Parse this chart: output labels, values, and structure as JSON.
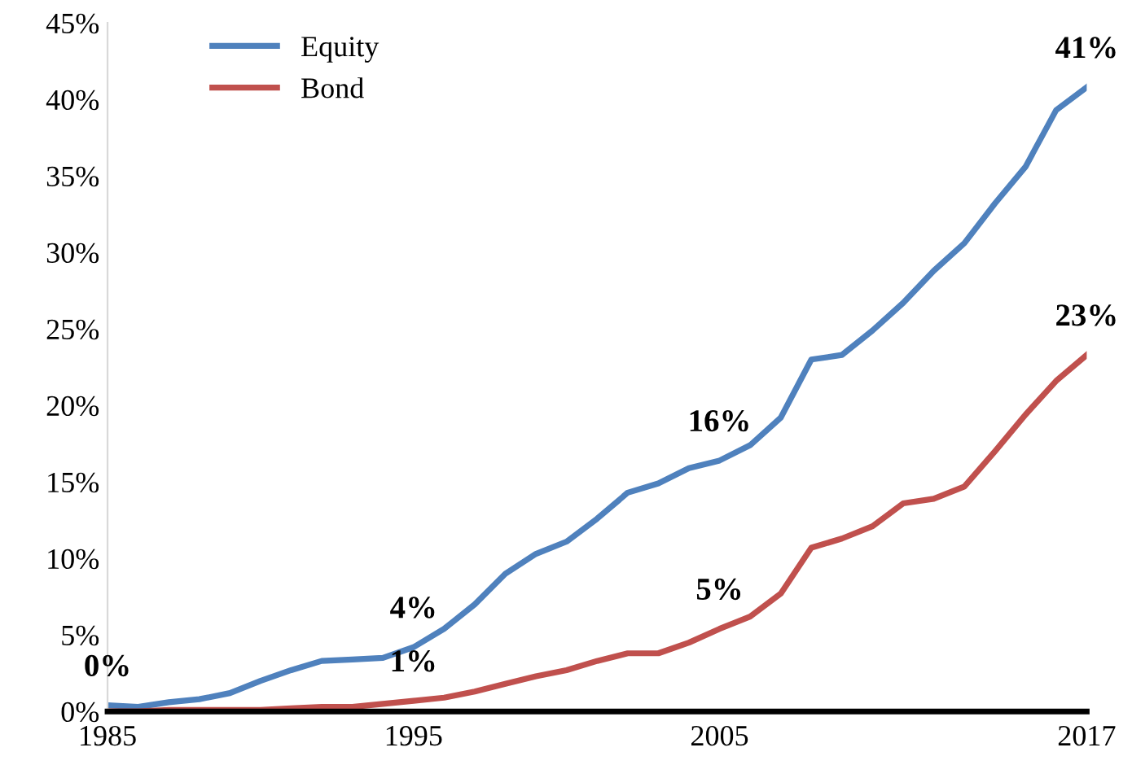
{
  "chart_data": {
    "type": "line",
    "x": [
      1985,
      1986,
      1987,
      1988,
      1989,
      1990,
      1991,
      1992,
      1993,
      1994,
      1995,
      1996,
      1997,
      1998,
      1999,
      2000,
      2001,
      2002,
      2003,
      2004,
      2005,
      2006,
      2007,
      2008,
      2009,
      2010,
      2011,
      2012,
      2013,
      2014,
      2015,
      2016,
      2017
    ],
    "series": [
      {
        "name": "Equity",
        "color": "#4f81bd",
        "values": [
          0.4,
          0.3,
          0.6,
          0.8,
          1.2,
          2.0,
          2.7,
          3.3,
          3.4,
          3.5,
          4.2,
          5.4,
          7.0,
          9.0,
          10.3,
          11.1,
          12.6,
          14.3,
          14.9,
          15.9,
          16.4,
          17.4,
          19.2,
          23.0,
          23.3,
          24.9,
          26.7,
          28.8,
          30.6,
          33.2,
          35.6,
          39.3,
          40.8
        ]
      },
      {
        "name": "Bond",
        "color": "#c0504d",
        "values": [
          0.0,
          0.0,
          0.1,
          0.1,
          0.1,
          0.1,
          0.2,
          0.3,
          0.3,
          0.5,
          0.7,
          0.9,
          1.3,
          1.8,
          2.3,
          2.7,
          3.3,
          3.8,
          3.8,
          4.5,
          5.4,
          6.2,
          7.7,
          10.7,
          11.3,
          12.1,
          13.6,
          13.9,
          14.7,
          17.0,
          19.4,
          21.6,
          23.3
        ]
      }
    ],
    "xlim": [
      1985,
      2017
    ],
    "xticks": [
      1985,
      1995,
      2005,
      2017
    ],
    "ylim": [
      0,
      45
    ],
    "yticks": [
      {
        "value": 0,
        "label": "0%"
      },
      {
        "value": 5,
        "label": "5%"
      },
      {
        "value": 10,
        "label": "10%"
      },
      {
        "value": 15,
        "label": "15%"
      },
      {
        "value": 20,
        "label": "20%"
      },
      {
        "value": 25,
        "label": "25%"
      },
      {
        "value": 30,
        "label": "30%"
      },
      {
        "value": 35,
        "label": "35%"
      },
      {
        "value": 40,
        "label": "40%"
      },
      {
        "value": 45,
        "label": "45%"
      }
    ],
    "annotations": [
      {
        "text": "0%",
        "x": 1985,
        "y": 0.4
      },
      {
        "text": "4%",
        "x": 1995,
        "y": 4.2
      },
      {
        "text": "1%",
        "x": 1995,
        "y": 0.7
      },
      {
        "text": "16%",
        "x": 2005,
        "y": 16.4
      },
      {
        "text": "5%",
        "x": 2005,
        "y": 5.4
      },
      {
        "text": "41%",
        "x": 2017,
        "y": 40.8
      },
      {
        "text": "23%",
        "x": 2017,
        "y": 23.3
      }
    ],
    "grid": false,
    "legend": "top left",
    "marker": "none",
    "line_style": "solid"
  }
}
